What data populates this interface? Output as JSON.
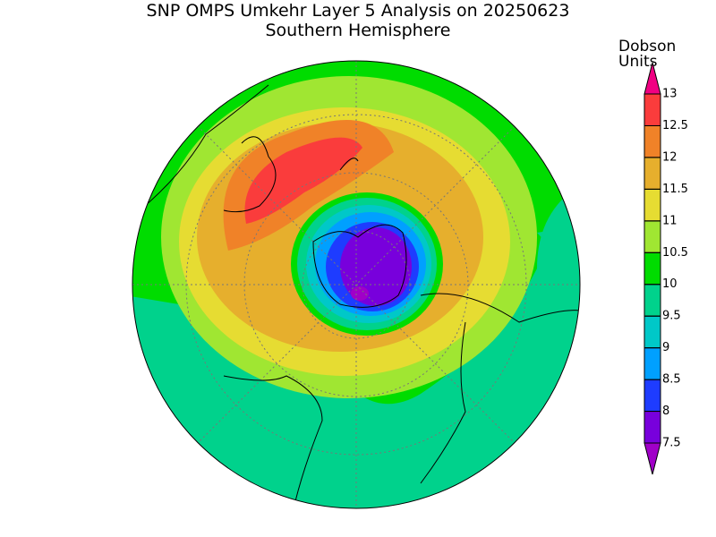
{
  "header": {
    "title": "SNP OMPS Umkehr Layer 5 Analysis on 20250623",
    "subtitle": "Southern Hemisphere"
  },
  "colorbar": {
    "units": [
      "Dobson",
      "Units"
    ],
    "ticks": [
      7.5,
      8,
      8.5,
      9,
      9.5,
      10,
      10.5,
      11,
      11.5,
      12,
      12.5,
      13
    ],
    "colors": [
      "#a000c8",
      "#7800dc",
      "#1e3cff",
      "#00a0ff",
      "#00c8c8",
      "#00d28c",
      "#00dc00",
      "#a0e632",
      "#e6dc32",
      "#e6af2d",
      "#f08228",
      "#fa3c3c",
      "#f00082"
    ]
  }
}
